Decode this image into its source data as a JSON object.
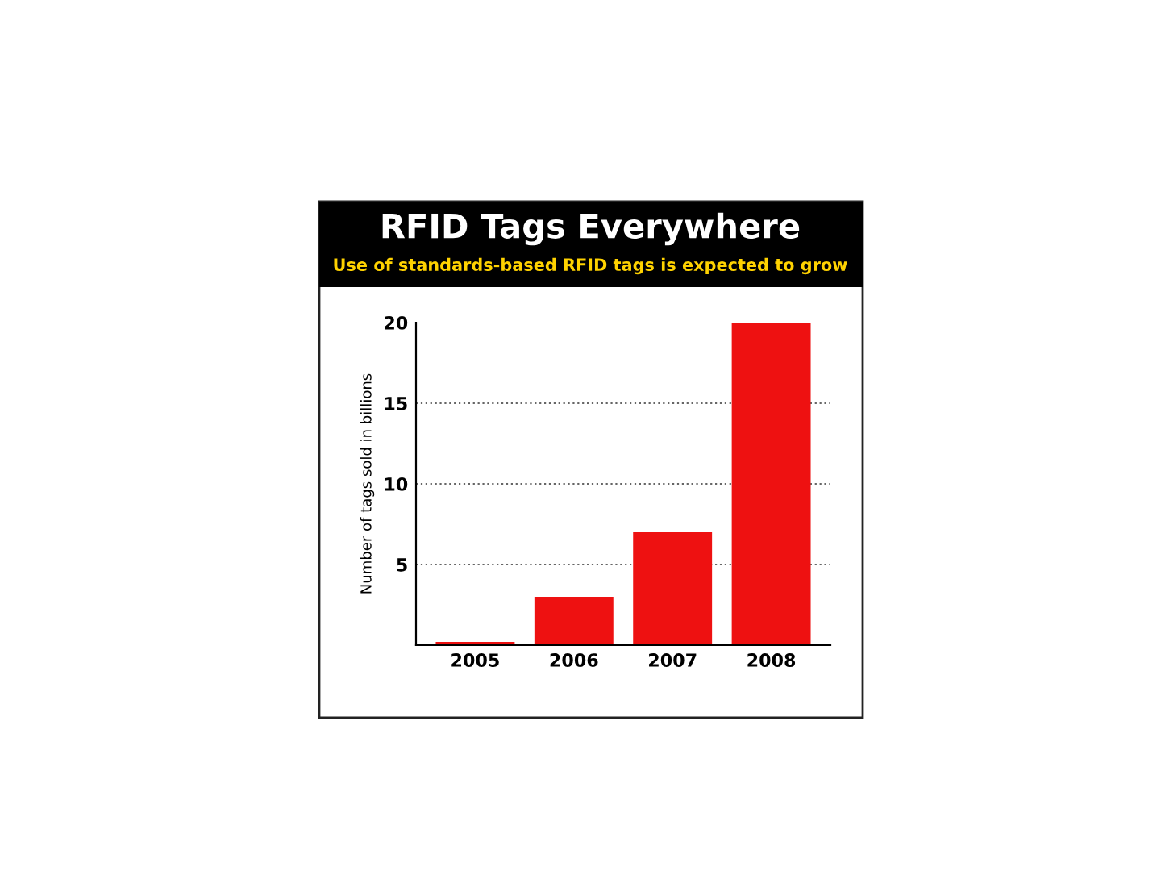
{
  "chart_data": {
    "type": "bar",
    "title": "RFID Tags Everywhere",
    "subtitle": "Use of standards-based RFID tags is expected to grow",
    "ylabel": "Number of tags sold in billions",
    "categories": [
      "2005",
      "2006",
      "2007",
      "2008"
    ],
    "values": [
      0.2,
      3,
      7,
      20
    ],
    "color": "#ee1111",
    "ylim": [
      0,
      20
    ],
    "yticks": [
      5,
      10,
      15,
      20
    ],
    "grid": "y"
  }
}
